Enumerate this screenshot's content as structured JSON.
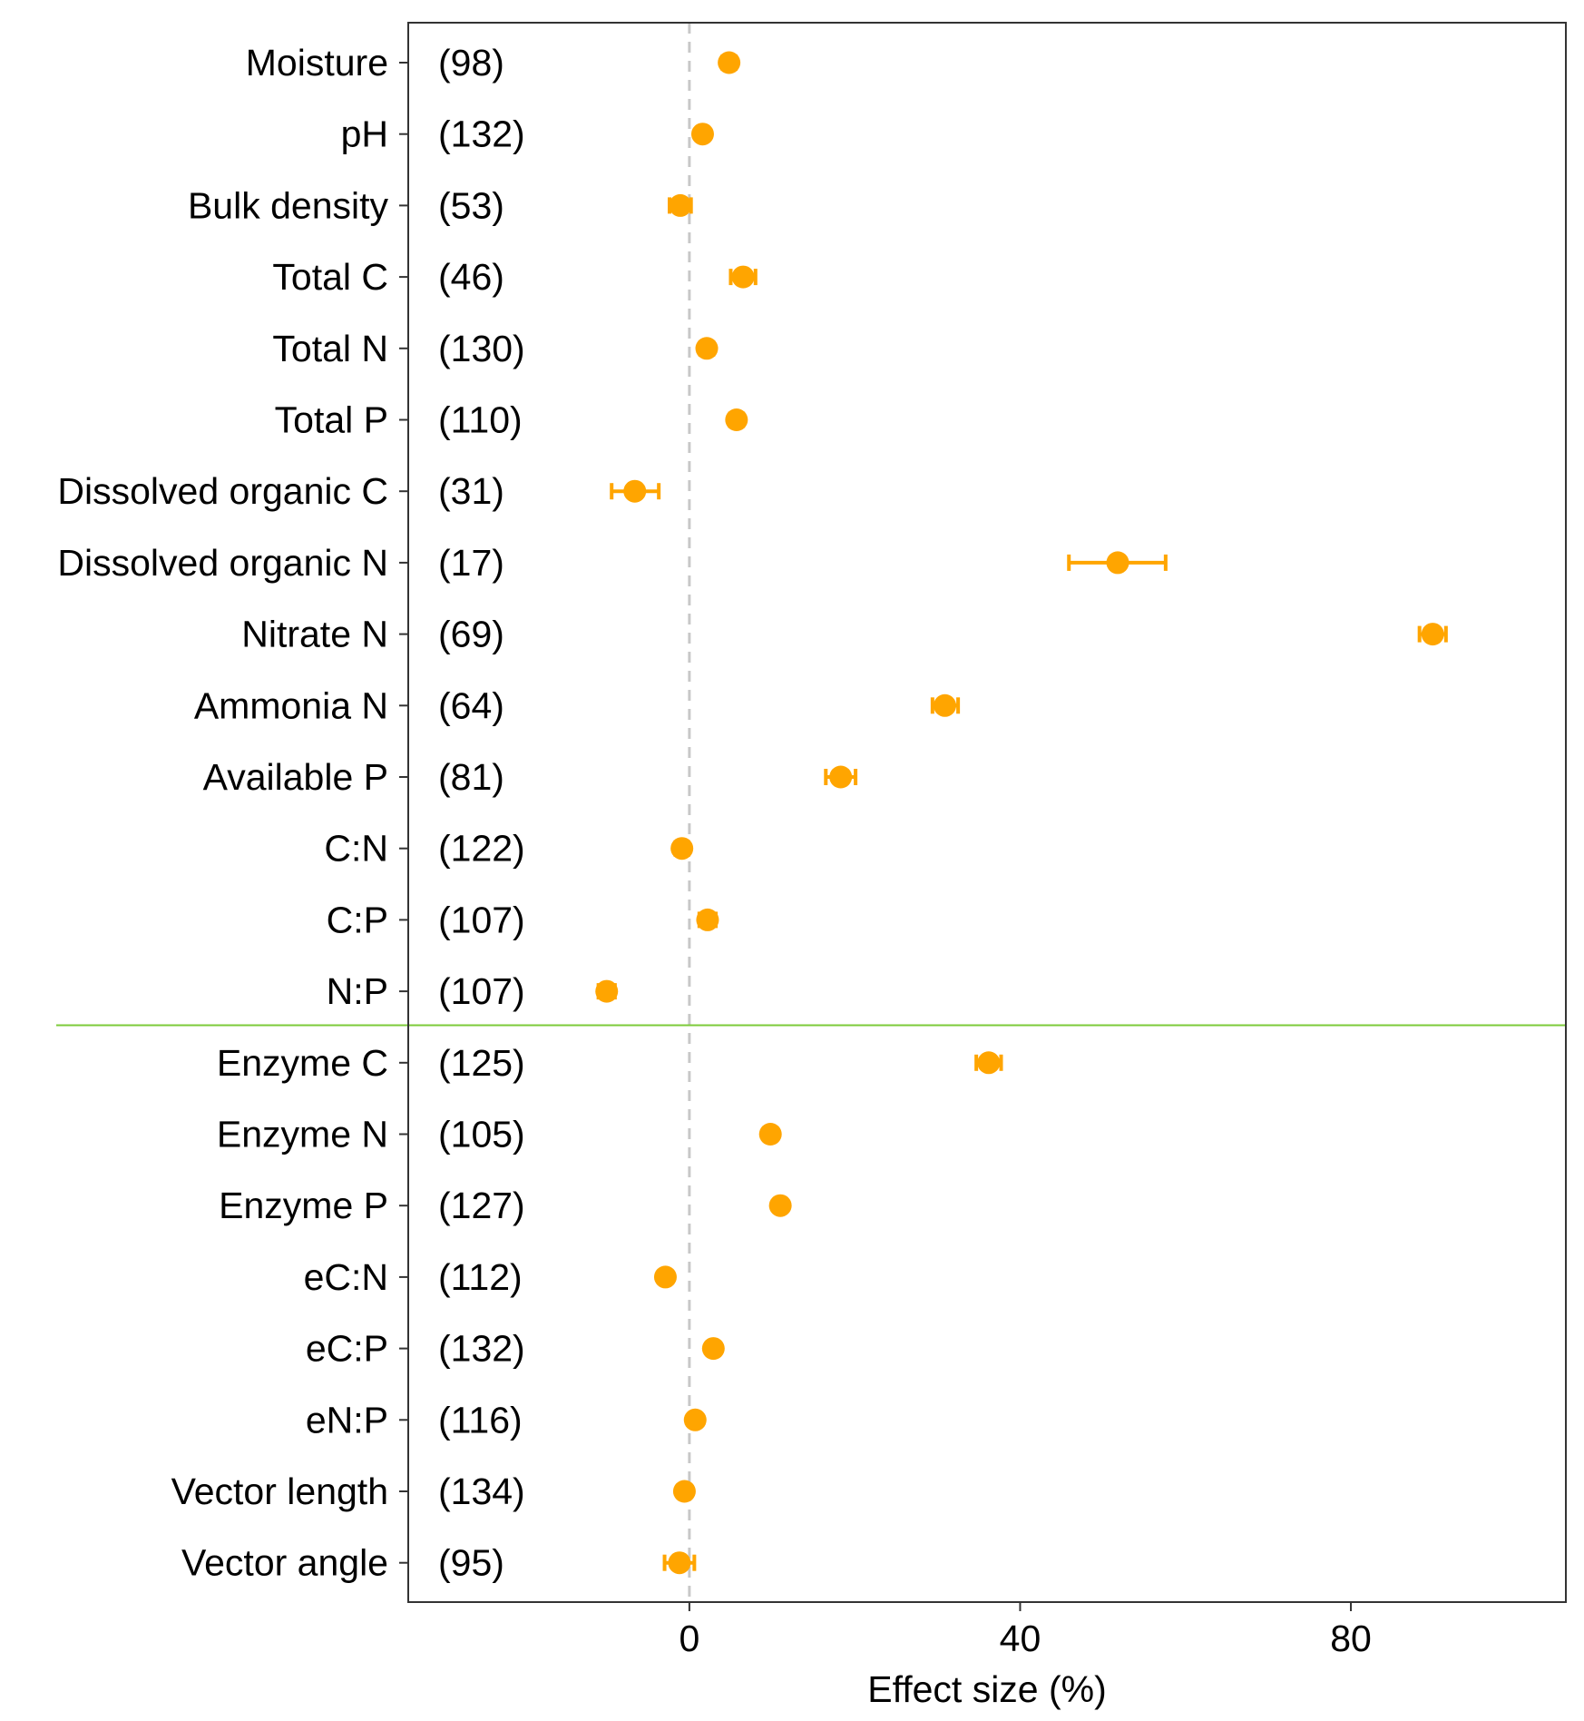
{
  "chart_data": {
    "type": "scatter",
    "subtype": "forest-plot",
    "title": "",
    "xlabel": "Effect size (%)",
    "ylabel": "",
    "xlim": [
      -34,
      106
    ],
    "xticks": [
      0,
      40,
      80
    ],
    "x_tick_labels": [
      "0",
      "40",
      "80"
    ],
    "reference_line_x": 0,
    "group_separator_after": "N:P",
    "colors": {
      "point": "#FFA500",
      "separator": "#7CCB3A",
      "reference": "#C8C8C8",
      "frame": "#333333"
    },
    "rows": [
      {
        "label": "Moisture",
        "n_label": "(98)",
        "value": 4.8,
        "lower": 4.0,
        "upper": 5.6
      },
      {
        "label": "pH",
        "n_label": "(132)",
        "value": 1.6,
        "lower": 0.9,
        "upper": 2.3
      },
      {
        "label": "Bulk density",
        "n_label": "(53)",
        "value": -1.1,
        "lower": -2.4,
        "upper": 0.2
      },
      {
        "label": "Total C",
        "n_label": "(46)",
        "value": 6.5,
        "lower": 5.0,
        "upper": 8.0
      },
      {
        "label": "Total N",
        "n_label": "(130)",
        "value": 2.1,
        "lower": 1.3,
        "upper": 2.9
      },
      {
        "label": "Total P",
        "n_label": "(110)",
        "value": 5.7,
        "lower": 4.9,
        "upper": 6.5
      },
      {
        "label": "Dissolved organic C",
        "n_label": "(31)",
        "value": -6.6,
        "lower": -9.4,
        "upper": -3.7
      },
      {
        "label": "Dissolved organic N",
        "n_label": "(17)",
        "value": 51.8,
        "lower": 45.9,
        "upper": 57.6
      },
      {
        "label": "Nitrate N",
        "n_label": "(69)",
        "value": 89.9,
        "lower": 88.3,
        "upper": 91.5
      },
      {
        "label": "Ammonia N",
        "n_label": "(64)",
        "value": 30.9,
        "lower": 29.4,
        "upper": 32.5
      },
      {
        "label": "Available P",
        "n_label": "(81)",
        "value": 18.3,
        "lower": 16.5,
        "upper": 20.1
      },
      {
        "label": "C:N",
        "n_label": "(122)",
        "value": -0.9,
        "lower": -1.7,
        "upper": -0.1
      },
      {
        "label": "C:P",
        "n_label": "(107)",
        "value": 2.2,
        "lower": 1.2,
        "upper": 3.2
      },
      {
        "label": "N:P",
        "n_label": "(107)",
        "value": -10.0,
        "lower": -11.0,
        "upper": -9.0
      },
      {
        "label": "Enzyme C",
        "n_label": "(125)",
        "value": 36.2,
        "lower": 34.7,
        "upper": 37.7
      },
      {
        "label": "Enzyme N",
        "n_label": "(105)",
        "value": 9.8,
        "lower": 9.1,
        "upper": 10.5
      },
      {
        "label": "Enzyme P",
        "n_label": "(127)",
        "value": 11.0,
        "lower": 10.3,
        "upper": 11.7
      },
      {
        "label": "eC:N",
        "n_label": "(112)",
        "value": -2.9,
        "lower": -3.6,
        "upper": -2.2
      },
      {
        "label": "eC:P",
        "n_label": "(132)",
        "value": 2.9,
        "lower": 2.2,
        "upper": 3.6
      },
      {
        "label": "eN:P",
        "n_label": "(116)",
        "value": 0.7,
        "lower": 0.1,
        "upper": 1.3
      },
      {
        "label": "Vector length",
        "n_label": "(134)",
        "value": -0.6,
        "lower": -1.3,
        "upper": 0.1
      },
      {
        "label": "Vector angle",
        "n_label": "(95)",
        "value": -1.2,
        "lower": -3.0,
        "upper": 0.6
      }
    ]
  }
}
